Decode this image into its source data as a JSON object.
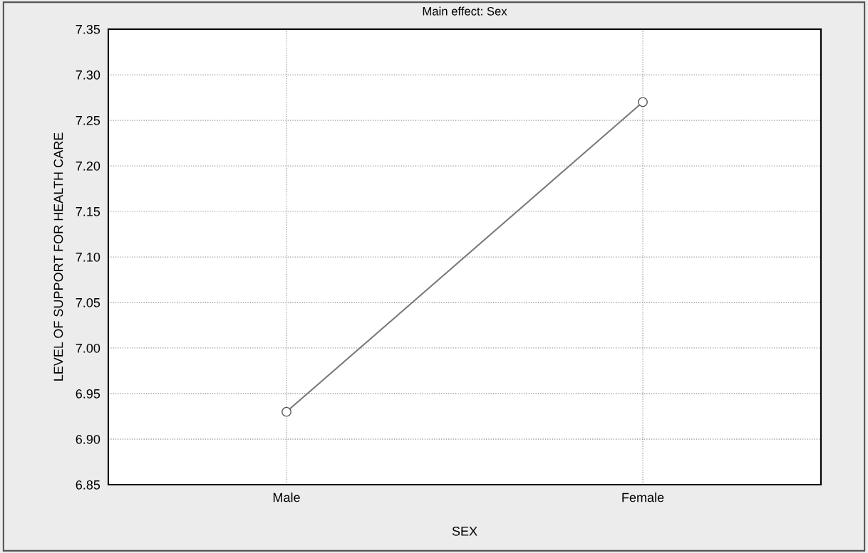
{
  "chart_data": {
    "type": "line",
    "title": "Main effect: Sex",
    "xlabel": "SEX",
    "ylabel": "LEVEL OF SUPPORT FOR HEALTH CARE",
    "categories": [
      "Male",
      "Female"
    ],
    "series": [
      {
        "color": "#7a7a7a",
        "values": [
          6.93,
          7.27
        ]
      }
    ],
    "ylim": [
      6.85,
      7.35
    ],
    "yticks": [
      {
        "value": 6.85,
        "label": "6.85"
      },
      {
        "value": 6.9,
        "label": "6.90"
      },
      {
        "value": 6.95,
        "label": "6.95"
      },
      {
        "value": 7.0,
        "label": "7.00"
      },
      {
        "value": 7.05,
        "label": "7.05"
      },
      {
        "value": 7.1,
        "label": "7.10"
      },
      {
        "value": 7.15,
        "label": "7.15"
      },
      {
        "value": 7.2,
        "label": "7.20"
      },
      {
        "value": 7.25,
        "label": "7.25"
      },
      {
        "value": 7.3,
        "label": "7.30"
      },
      {
        "value": 7.35,
        "label": "7.35"
      }
    ],
    "grid": true,
    "marker": "circle",
    "line_style": "solid",
    "legend": false
  }
}
